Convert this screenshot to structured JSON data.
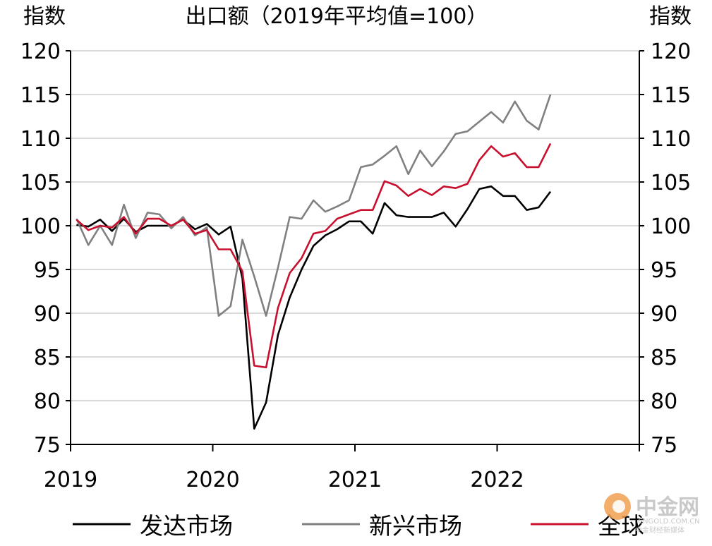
{
  "chart_data": {
    "type": "line",
    "title": "出口额（2019年平均值=100）",
    "ylabel_left": "指数",
    "ylabel_right": "指数",
    "ylim": [
      75,
      120
    ],
    "yticks": [
      75,
      80,
      85,
      90,
      95,
      100,
      105,
      110,
      115,
      120
    ],
    "xlim": [
      "2019-01",
      "2022-12"
    ],
    "x_tick_labels": [
      "2019",
      "2020",
      "2021",
      "2022"
    ],
    "grid": true,
    "legend_position": "bottom",
    "x": [
      "2019-01",
      "2019-02",
      "2019-03",
      "2019-04",
      "2019-05",
      "2019-06",
      "2019-07",
      "2019-08",
      "2019-09",
      "2019-10",
      "2019-11",
      "2019-12",
      "2020-01",
      "2020-02",
      "2020-03",
      "2020-04",
      "2020-05",
      "2020-06",
      "2020-07",
      "2020-08",
      "2020-09",
      "2020-10",
      "2020-11",
      "2020-12",
      "2021-01",
      "2021-02",
      "2021-03",
      "2021-04",
      "2021-05",
      "2021-06",
      "2021-07",
      "2021-08",
      "2021-09",
      "2021-10",
      "2021-11",
      "2021-12",
      "2022-01",
      "2022-02",
      "2022-03",
      "2022-04",
      "2022-05"
    ],
    "series": [
      {
        "name": "发达市场",
        "color": "#000000",
        "values": [
          100.1,
          99.9,
          100.7,
          99.4,
          100.8,
          99.3,
          100.0,
          100.0,
          100.0,
          100.7,
          99.6,
          100.2,
          99.0,
          99.9,
          94.0,
          76.8,
          79.8,
          87.5,
          91.8,
          95.0,
          97.7,
          98.9,
          99.6,
          100.5,
          100.5,
          99.1,
          102.6,
          101.2,
          101.0,
          101.0,
          101.0,
          101.5,
          99.9,
          101.9,
          104.2,
          104.5,
          103.4,
          103.4,
          101.8,
          102.1,
          103.9
        ]
      },
      {
        "name": "新兴市场",
        "color": "#808080",
        "values": [
          100.8,
          97.8,
          100.0,
          97.8,
          102.4,
          98.6,
          101.5,
          101.3,
          99.7,
          101.0,
          98.9,
          99.8,
          89.7,
          90.8,
          98.4,
          94.2,
          89.7,
          95.2,
          101.0,
          100.8,
          102.9,
          101.6,
          102.2,
          102.9,
          106.7,
          107.0,
          108.0,
          109.1,
          105.9,
          108.6,
          106.8,
          108.5,
          110.5,
          110.8,
          111.9,
          113.0,
          111.8,
          114.2,
          112.0,
          111.0,
          115.0
        ]
      },
      {
        "name": "全球",
        "color": "#c8102e",
        "values": [
          100.7,
          99.5,
          100.0,
          99.8,
          101.0,
          99.1,
          100.8,
          100.8,
          100.0,
          100.7,
          99.1,
          99.5,
          97.3,
          97.3,
          94.8,
          84.0,
          83.8,
          90.6,
          94.6,
          96.3,
          99.1,
          99.4,
          100.8,
          101.3,
          101.8,
          101.8,
          105.1,
          104.6,
          103.4,
          104.2,
          103.5,
          104.5,
          104.3,
          104.8,
          107.5,
          109.1,
          107.9,
          108.3,
          106.7,
          106.7,
          109.4
        ]
      }
    ]
  },
  "watermark": {
    "name": "中金网",
    "domain": "CNGOLD.COM.CN",
    "slogan": "中金财经新媒体"
  }
}
